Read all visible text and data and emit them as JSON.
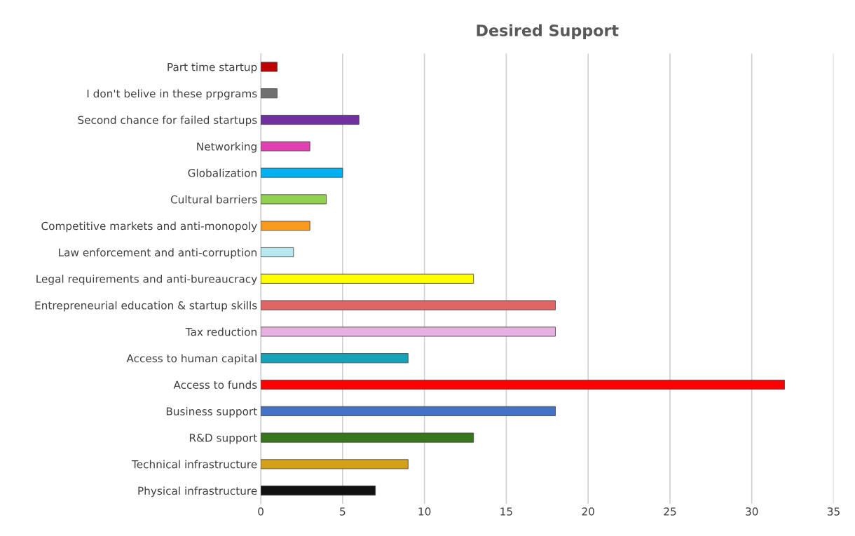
{
  "chart_data": {
    "type": "bar",
    "orientation": "horizontal",
    "title": "Desired Support",
    "categories": [
      "Part time startup",
      "I don't belive in these prpgrams",
      "Second chance for failed startups",
      "Networking",
      "Globalization",
      "Cultural barriers",
      "Competitive markets and anti-monopoly",
      "Law enforcement and anti-corruption",
      "Legal requirements and anti-bureaucracy",
      "Entrepreneurial education & startup skills",
      "Tax reduction",
      "Access to human capital",
      "Access to funds",
      "Business support",
      "R&D support",
      "Technical infrastructure",
      "Physical infrastructure"
    ],
    "values": [
      1,
      1,
      6,
      3,
      5,
      4,
      3,
      2,
      13,
      18,
      18,
      9,
      32,
      18,
      13,
      9,
      7
    ],
    "colors": [
      "#c00000",
      "#707070",
      "#7030a0",
      "#e040b0",
      "#00b0f0",
      "#92d050",
      "#f79a1e",
      "#b7e8f0",
      "#ffff00",
      "#e06666",
      "#e6b0e0",
      "#17a2b8",
      "#ff0000",
      "#4472c4",
      "#38761d",
      "#d4a017",
      "#111111"
    ],
    "xlim": [
      0,
      35
    ],
    "xticks": [
      0,
      5,
      10,
      15,
      20,
      25,
      30,
      35
    ],
    "grid": "x"
  }
}
